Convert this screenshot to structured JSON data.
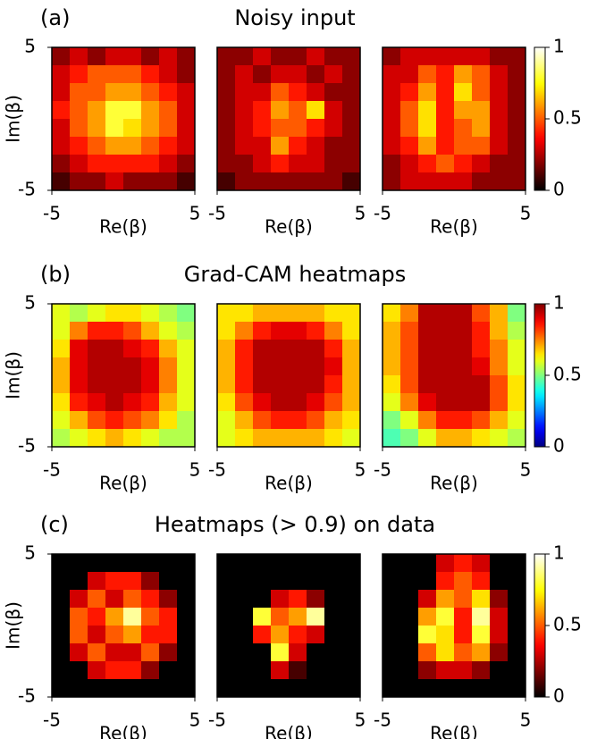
{
  "chart_data": [
    {
      "type": "heatmap",
      "panel_label": "(a)",
      "title": "Noisy input",
      "xlabel": "Re(β)",
      "ylabel": "Im(β)",
      "xlim": [
        -5,
        5
      ],
      "ylim": [
        -5,
        5
      ],
      "xticks": [
        -5,
        5
      ],
      "yticks": [
        -5,
        5
      ],
      "colormap": "hot",
      "clim": [
        0,
        1
      ],
      "cticks": [
        0,
        0.5,
        1
      ],
      "panels": [
        {
          "values": [
            [
              0.2,
              0.3,
              0.2,
              0.3,
              0.3,
              0.2,
              0.3,
              0.2
            ],
            [
              0.3,
              0.4,
              0.5,
              0.5,
              0.5,
              0.4,
              0.3,
              0.2
            ],
            [
              0.3,
              0.5,
              0.5,
              0.6,
              0.6,
              0.5,
              0.4,
              0.3
            ],
            [
              0.4,
              0.5,
              0.6,
              0.8,
              0.8,
              0.6,
              0.5,
              0.3
            ],
            [
              0.3,
              0.5,
              0.6,
              0.8,
              0.7,
              0.6,
              0.5,
              0.3
            ],
            [
              0.3,
              0.4,
              0.5,
              0.6,
              0.6,
              0.5,
              0.4,
              0.3
            ],
            [
              0.2,
              0.3,
              0.4,
              0.4,
              0.4,
              0.4,
              0.3,
              0.2
            ],
            [
              0.1,
              0.2,
              0.2,
              0.3,
              0.2,
              0.2,
              0.2,
              0.1
            ]
          ]
        },
        {
          "values": [
            [
              0.2,
              0.2,
              0.3,
              0.2,
              0.2,
              0.3,
              0.2,
              0.2
            ],
            [
              0.2,
              0.3,
              0.2,
              0.3,
              0.3,
              0.2,
              0.3,
              0.2
            ],
            [
              0.2,
              0.3,
              0.3,
              0.5,
              0.4,
              0.3,
              0.2,
              0.2
            ],
            [
              0.2,
              0.3,
              0.4,
              0.6,
              0.5,
              0.7,
              0.3,
              0.2
            ],
            [
              0.2,
              0.3,
              0.4,
              0.5,
              0.5,
              0.4,
              0.3,
              0.2
            ],
            [
              0.2,
              0.3,
              0.3,
              0.6,
              0.4,
              0.3,
              0.2,
              0.2
            ],
            [
              0.2,
              0.2,
              0.3,
              0.4,
              0.3,
              0.3,
              0.2,
              0.2
            ],
            [
              0.1,
              0.2,
              0.2,
              0.2,
              0.2,
              0.2,
              0.2,
              0.1
            ]
          ]
        },
        {
          "values": [
            [
              0.2,
              0.3,
              0.3,
              0.3,
              0.3,
              0.3,
              0.2,
              0.2
            ],
            [
              0.3,
              0.3,
              0.5,
              0.4,
              0.6,
              0.5,
              0.3,
              0.2
            ],
            [
              0.3,
              0.4,
              0.6,
              0.4,
              0.7,
              0.5,
              0.3,
              0.2
            ],
            [
              0.3,
              0.5,
              0.7,
              0.4,
              0.6,
              0.6,
              0.3,
              0.2
            ],
            [
              0.3,
              0.5,
              0.7,
              0.4,
              0.5,
              0.6,
              0.3,
              0.2
            ],
            [
              0.3,
              0.4,
              0.6,
              0.4,
              0.5,
              0.5,
              0.3,
              0.2
            ],
            [
              0.2,
              0.3,
              0.4,
              0.5,
              0.4,
              0.3,
              0.2,
              0.2
            ],
            [
              0.2,
              0.3,
              0.3,
              0.3,
              0.3,
              0.2,
              0.2,
              0.2
            ]
          ]
        }
      ]
    },
    {
      "type": "heatmap",
      "panel_label": "(b)",
      "title": "Grad-CAM heatmaps",
      "xlabel": "Re(β)",
      "ylabel": "Im(β)",
      "xlim": [
        -5,
        5
      ],
      "ylim": [
        -5,
        5
      ],
      "xticks": [
        -5,
        5
      ],
      "yticks": [
        -5,
        5
      ],
      "colormap": "jet",
      "clim": [
        0,
        1
      ],
      "cticks": [
        0,
        0.5,
        1
      ],
      "panels": [
        {
          "values": [
            [
              0.6,
              0.55,
              0.6,
              0.65,
              0.65,
              0.6,
              0.55,
              0.5
            ],
            [
              0.6,
              0.75,
              0.85,
              0.85,
              0.8,
              0.7,
              0.6,
              0.55
            ],
            [
              0.65,
              0.9,
              0.95,
              0.95,
              0.9,
              0.85,
              0.7,
              0.6
            ],
            [
              0.7,
              0.9,
              0.95,
              0.95,
              0.95,
              0.9,
              0.75,
              0.6
            ],
            [
              0.7,
              0.9,
              0.95,
              0.95,
              0.95,
              0.9,
              0.75,
              0.6
            ],
            [
              0.65,
              0.85,
              0.9,
              0.95,
              0.9,
              0.85,
              0.7,
              0.6
            ],
            [
              0.6,
              0.7,
              0.8,
              0.85,
              0.8,
              0.75,
              0.65,
              0.55
            ],
            [
              0.55,
              0.6,
              0.65,
              0.7,
              0.65,
              0.6,
              0.55,
              0.55
            ]
          ]
        },
        {
          "values": [
            [
              0.65,
              0.65,
              0.7,
              0.7,
              0.7,
              0.7,
              0.65,
              0.65
            ],
            [
              0.65,
              0.75,
              0.85,
              0.9,
              0.9,
              0.85,
              0.75,
              0.65
            ],
            [
              0.7,
              0.85,
              0.95,
              0.95,
              0.95,
              0.95,
              0.85,
              0.7
            ],
            [
              0.7,
              0.85,
              0.95,
              0.95,
              0.95,
              0.95,
              0.9,
              0.7
            ],
            [
              0.7,
              0.85,
              0.95,
              0.95,
              0.95,
              0.95,
              0.85,
              0.7
            ],
            [
              0.65,
              0.8,
              0.9,
              0.95,
              0.95,
              0.9,
              0.8,
              0.7
            ],
            [
              0.6,
              0.7,
              0.8,
              0.85,
              0.85,
              0.8,
              0.7,
              0.65
            ],
            [
              0.6,
              0.65,
              0.7,
              0.7,
              0.7,
              0.7,
              0.65,
              0.6
            ]
          ]
        },
        {
          "values": [
            [
              0.65,
              0.75,
              0.95,
              0.95,
              0.95,
              0.8,
              0.7,
              0.5
            ],
            [
              0.7,
              0.8,
              0.95,
              0.95,
              0.95,
              0.85,
              0.7,
              0.55
            ],
            [
              0.7,
              0.8,
              0.95,
              0.95,
              0.95,
              0.85,
              0.75,
              0.6
            ],
            [
              0.7,
              0.8,
              0.95,
              0.95,
              0.95,
              0.9,
              0.75,
              0.6
            ],
            [
              0.65,
              0.8,
              0.95,
              0.95,
              0.95,
              0.95,
              0.8,
              0.65
            ],
            [
              0.6,
              0.75,
              0.9,
              0.95,
              0.95,
              0.95,
              0.8,
              0.65
            ],
            [
              0.5,
              0.6,
              0.75,
              0.85,
              0.85,
              0.8,
              0.7,
              0.6
            ],
            [
              0.45,
              0.5,
              0.6,
              0.7,
              0.7,
              0.65,
              0.6,
              0.55
            ]
          ]
        }
      ]
    },
    {
      "type": "heatmap",
      "panel_label": "(c)",
      "title": "Heatmaps (> 0.9) on data",
      "xlabel": "Re(β)",
      "ylabel": "Im(β)",
      "xlim": [
        -5,
        5
      ],
      "ylim": [
        -5,
        5
      ],
      "xticks": [
        -5,
        5
      ],
      "yticks": [
        -5,
        5
      ],
      "colormap": "hot",
      "clim": [
        0,
        1
      ],
      "cticks": [
        0,
        0.5,
        1
      ],
      "panels": [
        {
          "values": [
            [
              0,
              0,
              0,
              0,
              0,
              0,
              0,
              0
            ],
            [
              0,
              0,
              0.3,
              0.4,
              0.4,
              0.2,
              0,
              0
            ],
            [
              0,
              0.3,
              0.5,
              0.3,
              0.5,
              0.4,
              0.2,
              0
            ],
            [
              0,
              0.5,
              0.4,
              0.6,
              0.9,
              0.5,
              0.4,
              0
            ],
            [
              0,
              0.5,
              0.3,
              0.5,
              0.6,
              0.4,
              0.4,
              0
            ],
            [
              0,
              0.3,
              0.5,
              0.3,
              0.3,
              0.5,
              0.2,
              0
            ],
            [
              0,
              0,
              0.3,
              0.4,
              0.4,
              0.2,
              0,
              0
            ],
            [
              0,
              0,
              0,
              0,
              0,
              0,
              0,
              0
            ]
          ]
        },
        {
          "values": [
            [
              0,
              0,
              0,
              0,
              0,
              0,
              0,
              0
            ],
            [
              0,
              0,
              0,
              0,
              0,
              0,
              0,
              0
            ],
            [
              0,
              0,
              0,
              0.3,
              0.4,
              0.2,
              0,
              0
            ],
            [
              0,
              0,
              0.8,
              0.5,
              0.6,
              0.9,
              0,
              0
            ],
            [
              0,
              0,
              0.4,
              0.6,
              0.4,
              0.3,
              0,
              0
            ],
            [
              0,
              0,
              0,
              0.8,
              0.3,
              0,
              0,
              0
            ],
            [
              0,
              0,
              0,
              0.3,
              0.1,
              0,
              0,
              0
            ],
            [
              0,
              0,
              0,
              0,
              0,
              0,
              0,
              0
            ]
          ]
        },
        {
          "values": [
            [
              0,
              0,
              0,
              0.3,
              0.4,
              0.3,
              0,
              0
            ],
            [
              0,
              0,
              0,
              0.4,
              0.5,
              0.4,
              0,
              0
            ],
            [
              0,
              0,
              0.3,
              0.6,
              0.5,
              0.7,
              0.2,
              0
            ],
            [
              0,
              0,
              0.6,
              0.8,
              0.4,
              0.9,
              0.3,
              0
            ],
            [
              0,
              0,
              0.8,
              0.7,
              0.4,
              0.8,
              0.3,
              0
            ],
            [
              0,
              0,
              0.5,
              0.7,
              0.5,
              0.6,
              0.2,
              0
            ],
            [
              0,
              0,
              0.2,
              0.3,
              0.3,
              0.2,
              0,
              0
            ],
            [
              0,
              0,
              0,
              0,
              0,
              0,
              0,
              0
            ]
          ]
        }
      ]
    }
  ]
}
